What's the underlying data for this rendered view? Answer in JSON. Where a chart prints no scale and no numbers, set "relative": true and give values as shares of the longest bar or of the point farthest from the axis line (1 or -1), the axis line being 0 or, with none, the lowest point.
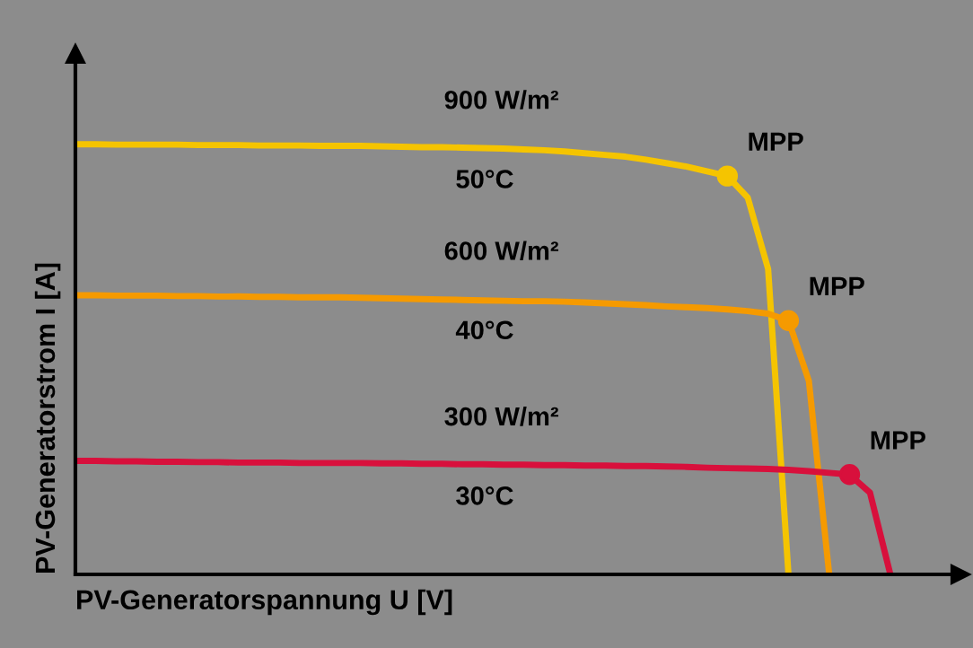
{
  "chart_data": {
    "type": "line",
    "relative": true,
    "xlabel": "PV-Generatorspannung U [V]",
    "ylabel": "PV-Generatorstrom I [A]",
    "categories": [
      null,
      null,
      null,
      null,
      null,
      null,
      null,
      null,
      null,
      null,
      null,
      null,
      null,
      null,
      null,
      null,
      null,
      null,
      null,
      null,
      null,
      null,
      null,
      null,
      null,
      null,
      null,
      null,
      null,
      null,
      null,
      null,
      null,
      null,
      null,
      null,
      null,
      null,
      null,
      null,
      null
    ],
    "series": [
      {
        "color": "#f5c400",
        "values": [
          1.0,
          1.0,
          0.999,
          0.999,
          0.999,
          0.999,
          0.998,
          0.998,
          0.998,
          0.997,
          0.997,
          0.997,
          0.996,
          0.996,
          0.996,
          0.995,
          0.994,
          0.993,
          0.993,
          0.992,
          0.991,
          0.99,
          0.988,
          0.986,
          0.983,
          0.979,
          0.975,
          0.971,
          0.964,
          0.956,
          0.948,
          0.937,
          0.926,
          0.876,
          0.71,
          0,
          null,
          null,
          null,
          null,
          null
        ]
      },
      {
        "color": "#f59a00",
        "values": [
          0.649,
          0.649,
          0.648,
          0.648,
          0.648,
          0.647,
          0.647,
          0.646,
          0.646,
          0.645,
          0.645,
          0.644,
          0.644,
          0.644,
          0.643,
          0.642,
          0.641,
          0.64,
          0.639,
          0.638,
          0.637,
          0.636,
          0.635,
          0.635,
          0.634,
          0.632,
          0.63,
          0.628,
          0.626,
          0.623,
          0.621,
          0.619,
          0.616,
          0.612,
          0.606,
          0.59,
          0.45,
          0,
          null,
          null,
          null
        ]
      },
      {
        "color": "#d8103c",
        "values": [
          0.264,
          0.264,
          0.263,
          0.263,
          0.262,
          0.262,
          0.261,
          0.261,
          0.26,
          0.26,
          0.26,
          0.259,
          0.259,
          0.259,
          0.259,
          0.258,
          0.258,
          0.257,
          0.257,
          0.256,
          0.256,
          0.255,
          0.255,
          0.254,
          0.254,
          0.253,
          0.253,
          0.252,
          0.252,
          0.251,
          0.25,
          0.248,
          0.247,
          0.246,
          0.245,
          0.243,
          0.24,
          0.236,
          0.232,
          0.19,
          0
        ]
      }
    ],
    "annotations": [
      "900 W/m²",
      "50°C",
      "MPP",
      "600 W/m²",
      "40°C",
      "MPP",
      "300 W/m²",
      "30°C",
      "MPP"
    ],
    "marker": "none",
    "line_style": "solid",
    "legend": false
  }
}
